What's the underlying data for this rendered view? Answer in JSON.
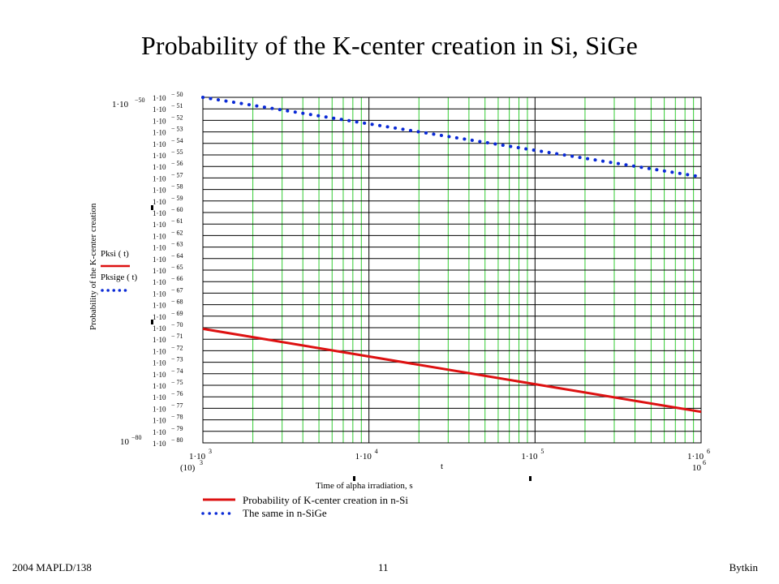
{
  "slide": {
    "title": "Probability of the K-center creation in Si, SiGe",
    "footer_left": "2004 MAPLD/138",
    "footer_center": "11",
    "footer_right": "Bytkin"
  },
  "chart_data": {
    "type": "line",
    "title": "Probability of the K-center creation in Si, SiGe",
    "xlabel": "Time of alpha irradiation, s",
    "x_variable": "t",
    "ylabel": "Probability of the K-center creation",
    "x_scale": "log",
    "y_scale": "log",
    "xlim": [
      1000,
      1000000
    ],
    "ylim": [
      1e-80,
      1e-50
    ],
    "x_range_left_label": {
      "base": "(10)",
      "exp": "3"
    },
    "x_range_right_label": {
      "base": "10",
      "exp": "6"
    },
    "y_range_top_label": {
      "base": "1·10",
      "exp": "−50"
    },
    "y_range_bottom_label": {
      "base": "10",
      "exp": "−80"
    },
    "x_tick_labels": [
      {
        "value": 1000,
        "base": "1·10",
        "exp": "3"
      },
      {
        "value": 10000,
        "base": "1·10",
        "exp": "4"
      },
      {
        "value": 100000,
        "base": "1·10",
        "exp": "5"
      },
      {
        "value": 1000000,
        "base": "1·10",
        "exp": "6"
      }
    ],
    "y_ticks": {
      "exponents": [
        -50,
        -51,
        -52,
        -53,
        -54,
        -55,
        -56,
        -57,
        -58,
        -59,
        -60,
        -61,
        -62,
        -63,
        -64,
        -65,
        -66,
        -67,
        -68,
        -69,
        -70,
        -71,
        -72,
        -73,
        -74,
        -75,
        -76,
        -77,
        -78,
        -79,
        -80
      ],
      "base": "1·10",
      "exp_prefix": "−"
    },
    "grid": true,
    "legend_inline": [
      {
        "label": "Pksi ( t)",
        "style": "solid"
      },
      {
        "label": "Pksige  ( t)",
        "style": "dotted"
      }
    ],
    "series": [
      {
        "name": "Probability of K-center creation in n-Si",
        "color": "#dd1111",
        "style": "solid",
        "x": [
          1000,
          10000,
          100000,
          1000000
        ],
        "log10_y": [
          -70.1,
          -72.5,
          -74.9,
          -77.3
        ]
      },
      {
        "name": "The same in n-SiGe",
        "color": "#0a2ad6",
        "style": "dotted",
        "x": [
          1000,
          10000,
          100000,
          1000000
        ],
        "log10_y": [
          -50.0,
          -52.3,
          -54.6,
          -56.9
        ]
      }
    ]
  }
}
